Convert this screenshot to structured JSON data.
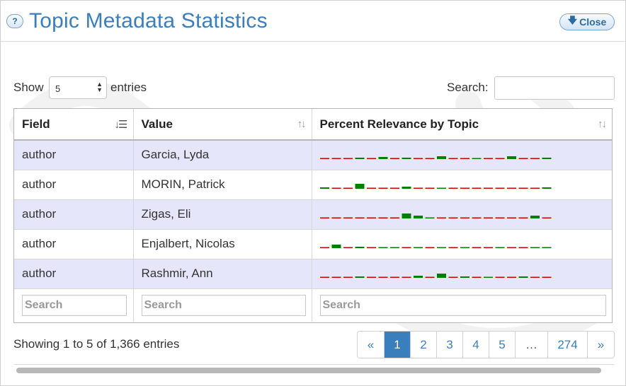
{
  "header": {
    "help_label": "?",
    "title": "Topic Metadata Statistics",
    "close_label": "Close",
    "close_icon": "arrow-down-icon"
  },
  "controls": {
    "show_label": "Show",
    "page_size": "5",
    "entries_label": "entries",
    "search_label": "Search:",
    "search_value": ""
  },
  "table": {
    "columns": [
      {
        "label": "Field",
        "sort": "ascending"
      },
      {
        "label": "Value",
        "sort": "none"
      },
      {
        "label": "Percent Relevance by Topic",
        "sort": "none"
      }
    ],
    "rows": [
      {
        "field": "author",
        "value": "Garcia, Lyda",
        "topics": [
          0.02,
          0.02,
          0.02,
          0.15,
          0.02,
          0.25,
          0.02,
          0.2,
          0.02,
          0.02,
          0.35,
          0.02,
          0.02,
          0.12,
          0.02,
          0.02,
          0.3,
          0.02,
          0.02,
          0.2
        ]
      },
      {
        "field": "author",
        "value": "MORIN, Patrick",
        "topics": [
          0.15,
          0.02,
          0.02,
          0.55,
          0.02,
          0.02,
          0.02,
          0.25,
          0.02,
          0.02,
          0.12,
          0.02,
          0.02,
          0.02,
          0.02,
          0.02,
          0.02,
          0.02,
          0.02,
          0.2
        ]
      },
      {
        "field": "author",
        "value": "Zigas, Eli",
        "topics": [
          0.02,
          0.02,
          0.02,
          0.02,
          0.02,
          0.02,
          0.02,
          0.6,
          0.3,
          0.1,
          0.02,
          0.02,
          0.02,
          0.02,
          0.02,
          0.02,
          0.02,
          0.02,
          0.35,
          0.02
        ]
      },
      {
        "field": "author",
        "value": "Enjalbert, Nicolas",
        "topics": [
          0.02,
          0.45,
          0.02,
          0.15,
          0.02,
          0.08,
          0.06,
          0.02,
          0.1,
          0.02,
          0.06,
          0.02,
          0.05,
          0.02,
          0.02,
          0.12,
          0.02,
          0.02,
          0.08,
          0.12
        ]
      },
      {
        "field": "author",
        "value": "Rashmir, Ann",
        "topics": [
          0.02,
          0.02,
          0.02,
          0.2,
          0.02,
          0.02,
          0.02,
          0.02,
          0.25,
          0.02,
          0.5,
          0.02,
          0.15,
          0.02,
          0.08,
          0.02,
          0.02,
          0.15,
          0.02,
          0.02
        ]
      }
    ],
    "filter_placeholders": [
      "Search",
      "Search",
      "Search"
    ]
  },
  "footer": {
    "info": "Showing 1 to 5 of 1,366 entries",
    "pages": [
      "«",
      "1",
      "2",
      "3",
      "4",
      "5",
      "…",
      "274",
      "»"
    ],
    "active_page": "1"
  },
  "colors": {
    "accent": "#3a7fbd",
    "row_highlight": "#e6e6fa",
    "bar_high": "#008000",
    "bar_low": "#cc0000"
  }
}
